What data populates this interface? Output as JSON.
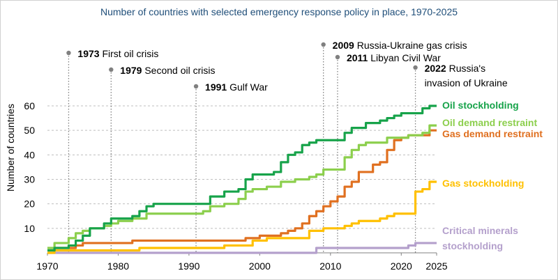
{
  "chart_data": {
    "type": "line",
    "title": "Number of countries with selected emergency response policy in place, 1970-2025",
    "xlabel": "",
    "ylabel": "Number of countries",
    "xlim": [
      1970,
      2025
    ],
    "ylim": [
      0,
      65
    ],
    "x_ticks": [
      1970,
      1980,
      1990,
      2000,
      2010,
      2020,
      2025
    ],
    "y_ticks": [
      10,
      20,
      30,
      40,
      50,
      60
    ],
    "grid": "horizontal dashed",
    "series": [
      {
        "name": "Oil stockholding",
        "label_lines": [
          "Oil stockholding"
        ],
        "color": "#17a34a",
        "x": [
          1970,
          1971,
          1972,
          1973,
          1974,
          1975,
          1976,
          1977,
          1978,
          1979,
          1980,
          1981,
          1982,
          1983,
          1984,
          1985,
          1986,
          1987,
          1988,
          1989,
          1990,
          1991,
          1992,
          1993,
          1994,
          1995,
          1996,
          1997,
          1998,
          1999,
          2000,
          2001,
          2002,
          2003,
          2004,
          2005,
          2006,
          2007,
          2008,
          2009,
          2010,
          2011,
          2012,
          2013,
          2014,
          2015,
          2016,
          2017,
          2018,
          2019,
          2020,
          2021,
          2022,
          2023,
          2024,
          2025
        ],
        "values": [
          1,
          2,
          2,
          3,
          5,
          7,
          10,
          10,
          12,
          14,
          14,
          14,
          15,
          17,
          19,
          20,
          20,
          20,
          20,
          20,
          20,
          20,
          20,
          23,
          23,
          25,
          25,
          26,
          30,
          32,
          32,
          32,
          33,
          37,
          40,
          41,
          44,
          45,
          46,
          46,
          46,
          46,
          49,
          51,
          51,
          53,
          53,
          54,
          55,
          56,
          57,
          57,
          57,
          59,
          60,
          60
        ]
      },
      {
        "name": "Oil demand restraint",
        "label_lines": [
          "Oil demand restraint"
        ],
        "color": "#8ccf4d",
        "x": [
          1970,
          1971,
          1972,
          1973,
          1974,
          1975,
          1976,
          1977,
          1978,
          1979,
          1980,
          1981,
          1982,
          1983,
          1984,
          1985,
          1986,
          1987,
          1988,
          1989,
          1990,
          1991,
          1992,
          1993,
          1994,
          1995,
          1996,
          1997,
          1998,
          1999,
          2000,
          2001,
          2002,
          2003,
          2004,
          2005,
          2006,
          2007,
          2008,
          2009,
          2010,
          2011,
          2012,
          2013,
          2014,
          2015,
          2016,
          2017,
          2018,
          2019,
          2020,
          2021,
          2022,
          2023,
          2024,
          2025
        ],
        "values": [
          2,
          4,
          4,
          6,
          8,
          9,
          10,
          10,
          11,
          12,
          13,
          13,
          14,
          14,
          16,
          16,
          16,
          16,
          16,
          16,
          16,
          16,
          17,
          19,
          19,
          20,
          20,
          22,
          25,
          26,
          26,
          27,
          27,
          29,
          29,
          30,
          30,
          31,
          32,
          34,
          34,
          34,
          39,
          42,
          44,
          45,
          45,
          45,
          47,
          47,
          47,
          48,
          48,
          49,
          52,
          52
        ]
      },
      {
        "name": "Gas demand restraint",
        "label_lines": [
          "Gas demand restraint"
        ],
        "color": "#e07020",
        "x": [
          1970,
          1971,
          1972,
          1973,
          1974,
          1975,
          1976,
          1977,
          1978,
          1979,
          1980,
          1981,
          1982,
          1983,
          1984,
          1985,
          1986,
          1987,
          1988,
          1989,
          1990,
          1991,
          1992,
          1993,
          1994,
          1995,
          1996,
          1997,
          1998,
          1999,
          2000,
          2001,
          2002,
          2003,
          2004,
          2005,
          2006,
          2007,
          2008,
          2009,
          2010,
          2011,
          2012,
          2013,
          2014,
          2015,
          2016,
          2017,
          2018,
          2019,
          2020,
          2021,
          2022,
          2023,
          2024,
          2025
        ],
        "values": [
          1,
          2,
          2,
          2,
          3,
          4,
          4,
          4,
          4,
          4,
          4,
          4,
          5,
          5,
          5,
          5,
          5,
          5,
          5,
          5,
          5,
          5,
          5,
          5,
          5,
          5,
          5,
          5,
          6,
          6,
          7,
          7,
          7,
          8,
          9,
          10,
          12,
          15,
          17,
          19,
          21,
          23,
          27,
          29,
          33,
          33,
          36,
          37,
          42,
          46,
          47,
          48,
          48,
          48,
          50,
          50
        ]
      },
      {
        "name": "Gas stockholding",
        "label_lines": [
          "Gas stockholding"
        ],
        "color": "#ffc000",
        "x": [
          1970,
          1971,
          1972,
          1973,
          1974,
          1975,
          1976,
          1977,
          1978,
          1979,
          1980,
          1981,
          1982,
          1983,
          1984,
          1985,
          1986,
          1987,
          1988,
          1989,
          1990,
          1991,
          1992,
          1993,
          1994,
          1995,
          1996,
          1997,
          1998,
          1999,
          2000,
          2001,
          2002,
          2003,
          2004,
          2005,
          2006,
          2007,
          2008,
          2009,
          2010,
          2011,
          2012,
          2013,
          2014,
          2015,
          2016,
          2017,
          2018,
          2019,
          2020,
          2021,
          2022,
          2023,
          2024,
          2025
        ],
        "values": [
          0,
          1,
          1,
          1,
          1,
          1,
          1,
          1,
          1,
          1,
          1,
          1,
          1,
          2,
          2,
          2,
          2,
          2,
          2,
          2,
          2,
          2,
          2,
          2,
          2,
          3,
          3,
          3,
          3,
          5,
          5,
          6,
          6,
          6,
          6,
          6,
          6,
          9,
          9,
          10,
          10,
          10,
          11,
          12,
          13,
          13,
          13,
          14,
          15,
          16,
          16,
          16,
          25,
          26,
          29,
          29
        ]
      },
      {
        "name": "Critical minerals stockholding",
        "label_lines": [
          "Critical minerals",
          "stockholding"
        ],
        "color": "#b4a0cc",
        "x": [
          1970,
          1971,
          1972,
          1973,
          1974,
          1975,
          1976,
          1977,
          1978,
          1979,
          1980,
          1981,
          1982,
          1983,
          1984,
          1985,
          1986,
          1987,
          1988,
          1989,
          1990,
          1991,
          1992,
          1993,
          1994,
          1995,
          1996,
          1997,
          1998,
          1999,
          2000,
          2001,
          2002,
          2003,
          2004,
          2005,
          2006,
          2007,
          2008,
          2009,
          2010,
          2011,
          2012,
          2013,
          2014,
          2015,
          2016,
          2017,
          2018,
          2019,
          2020,
          2021,
          2022,
          2023,
          2024,
          2025
        ],
        "values": [
          0,
          0,
          0,
          0,
          0,
          0,
          0,
          0,
          0,
          0,
          0,
          0,
          0,
          0,
          0,
          0,
          0,
          0,
          0,
          0,
          0,
          0,
          0,
          0,
          0,
          0,
          0,
          0,
          0,
          0,
          0,
          0,
          0,
          0,
          0,
          0,
          0,
          0,
          2,
          2,
          2,
          2,
          2,
          2,
          2,
          2,
          2,
          2,
          2,
          2,
          2,
          3,
          4,
          4,
          4,
          4
        ]
      }
    ],
    "annotations": [
      {
        "year": 1973,
        "label_year": "1973",
        "label_text": " First oil crisis",
        "lines": []
      },
      {
        "year": 1979,
        "label_year": "1979",
        "label_text": " Second oil crisis",
        "lines": []
      },
      {
        "year": 1991,
        "label_year": "1991",
        "label_text": " Gulf War",
        "lines": []
      },
      {
        "year": 2009,
        "label_year": "2009",
        "label_text": " Russia-Ukraine gas crisis",
        "lines": []
      },
      {
        "year": 2011,
        "label_year": "2011",
        "label_text": " Libyan Civil War",
        "lines": []
      },
      {
        "year": 2022,
        "label_year": "2022",
        "label_text": " Russia's",
        "lines": [
          "invasion of Ukraine"
        ]
      }
    ]
  }
}
